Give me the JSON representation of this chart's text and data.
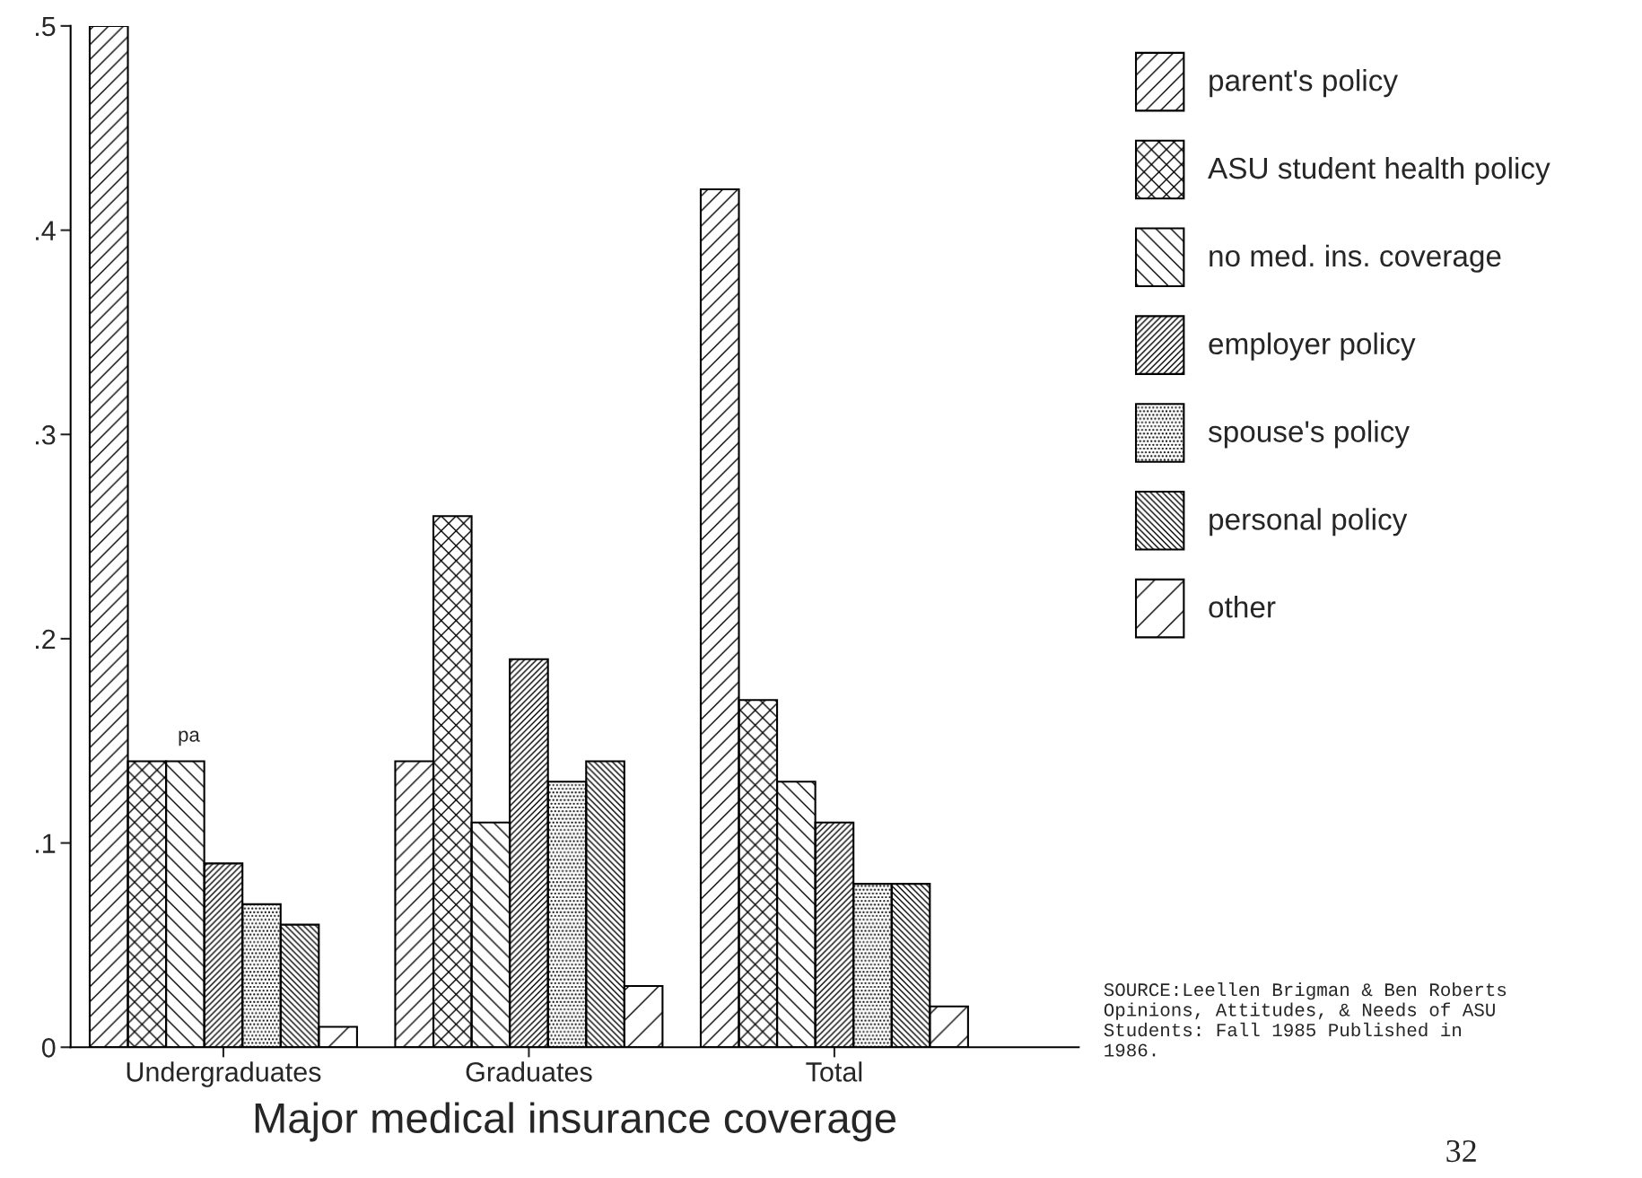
{
  "chart_data": {
    "type": "bar",
    "xlabel": "Major medical insurance coverage",
    "categories": [
      "Undergraduates",
      "Graduates",
      "Total"
    ],
    "series": [
      {
        "name": "parent's policy",
        "color": "#000000",
        "values": [
          0.5,
          0.14,
          0.42
        ]
      },
      {
        "name": "ASU student health policy",
        "color": "#000000",
        "values": [
          0.14,
          0.26,
          0.17
        ]
      },
      {
        "name": "no med. ins. coverage",
        "color": "#000000",
        "values": [
          0.14,
          0.11,
          0.13
        ]
      },
      {
        "name": "employer policy",
        "color": "#000000",
        "values": [
          0.09,
          0.19,
          0.11
        ]
      },
      {
        "name": "spouse's policy",
        "color": "#000000",
        "values": [
          0.07,
          0.13,
          0.08
        ]
      },
      {
        "name": "personal policy",
        "color": "#000000",
        "values": [
          0.06,
          0.14,
          0.08
        ]
      },
      {
        "name": "other",
        "color": "#000000",
        "values": [
          0.01,
          0.03,
          0.02
        ]
      }
    ],
    "ylim": [
      0,
      0.5
    ],
    "yticks": [
      0,
      {
        "value": 0.1,
        "label": ".1"
      },
      {
        "value": 0.2,
        "label": ".2"
      },
      {
        "value": 0.3,
        "label": ".3"
      },
      {
        "value": 0.4,
        "label": ".4"
      },
      {
        "value": 0.5,
        "label": ".5"
      }
    ],
    "grid": false,
    "legend": "right",
    "annotations": [
      "pa",
      "SOURCE:Leellen Brigman & Ben Roberts Opinions, Attitudes, & Needs of ASU Students: Fall 1985 Published in 1986.",
      "32"
    ]
  }
}
